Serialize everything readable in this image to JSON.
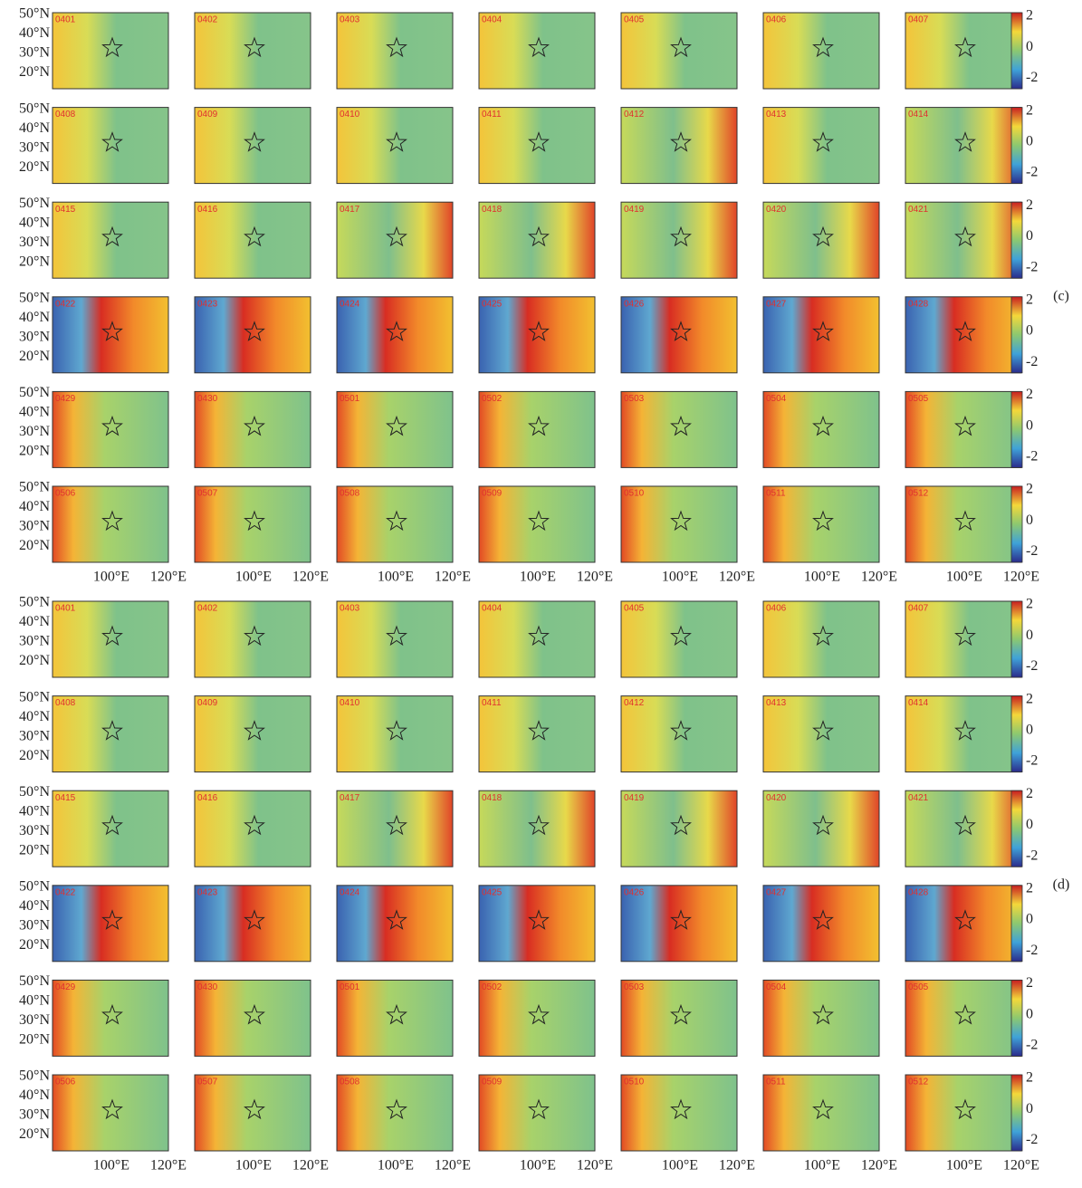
{
  "figures": [
    {
      "label": "(c)",
      "dates": [
        "0401",
        "0402",
        "0403",
        "0404",
        "0405",
        "0406",
        "0407",
        "0408",
        "0409",
        "0410",
        "0411",
        "0412",
        "0413",
        "0414",
        "0415",
        "0416",
        "0417",
        "0418",
        "0419",
        "0420",
        "0421",
        "0422",
        "0423",
        "0424",
        "0425",
        "0426",
        "0427",
        "0428",
        "0429",
        "0430",
        "0501",
        "0502",
        "0503",
        "0504",
        "0505",
        "0506",
        "0507",
        "0508",
        "0509",
        "0510",
        "0511",
        "0512"
      ],
      "y_ticks": [
        "50°N",
        "40°N",
        "30°N",
        "20°N"
      ],
      "x_ticks": [
        "100°E",
        "120°E"
      ],
      "colorbar_ticks": [
        2,
        0,
        -2
      ]
    },
    {
      "label": "(d)",
      "dates": [
        "0401",
        "0402",
        "0403",
        "0404",
        "0405",
        "0406",
        "0407",
        "0408",
        "0409",
        "0410",
        "0411",
        "0412",
        "0413",
        "0414",
        "0415",
        "0416",
        "0417",
        "0418",
        "0419",
        "0420",
        "0421",
        "0422",
        "0423",
        "0424",
        "0425",
        "0426",
        "0427",
        "0428",
        "0429",
        "0430",
        "0501",
        "0502",
        "0503",
        "0504",
        "0505",
        "0506",
        "0507",
        "0508",
        "0509",
        "0510",
        "0511",
        "0512"
      ],
      "y_ticks": [
        "50°N",
        "40°N",
        "30°N",
        "20°N"
      ],
      "x_ticks": [
        "100°E",
        "120°E"
      ],
      "colorbar_ticks": [
        2,
        0,
        -2
      ]
    }
  ]
}
